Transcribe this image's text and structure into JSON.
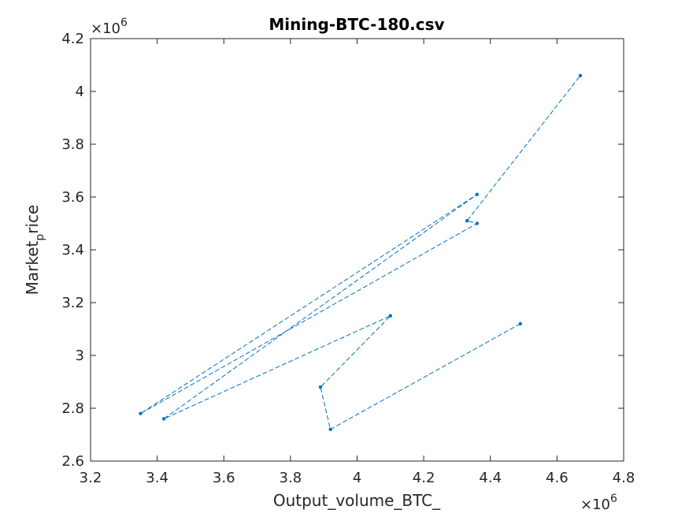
{
  "chart_data": {
    "type": "line",
    "title": "Mining-BTC-180.csv",
    "xlabel": "Output_volume_BTC_",
    "ylabel_base": "Market",
    "ylabel_sub": "p",
    "ylabel_rest": "rice",
    "x_exponent_label": "×10",
    "x_exponent_power": "6",
    "y_exponent_label": "×10",
    "y_exponent_power": "6",
    "xlim": [
      3.2,
      4.8
    ],
    "ylim": [
      2.6,
      4.2
    ],
    "x_ticks": [
      3.2,
      3.4,
      3.6,
      3.8,
      4.0,
      4.2,
      4.4,
      4.6,
      4.8
    ],
    "x_tick_labels": [
      "3.2",
      "3.4",
      "3.6",
      "3.8",
      "4",
      "4.2",
      "4.4",
      "4.6",
      "4.8"
    ],
    "y_ticks": [
      2.6,
      2.8,
      3.0,
      3.2,
      3.4,
      3.6,
      3.8,
      4.0,
      4.2
    ],
    "y_tick_labels": [
      "2.6",
      "2.8",
      "3",
      "3.2",
      "3.4",
      "3.6",
      "3.8",
      "4",
      "4.2"
    ],
    "grid": false,
    "line_style": "dashed",
    "marker": "dot",
    "color": "#0072BD",
    "series": [
      {
        "x": [
          4.49,
          3.92,
          3.89,
          4.1,
          3.42,
          4.36,
          3.35,
          4.36,
          4.33,
          4.67
        ],
        "y": [
          3.12,
          2.72,
          2.88,
          3.15,
          2.76,
          3.61,
          2.78,
          3.5,
          3.51,
          4.06
        ]
      }
    ]
  }
}
